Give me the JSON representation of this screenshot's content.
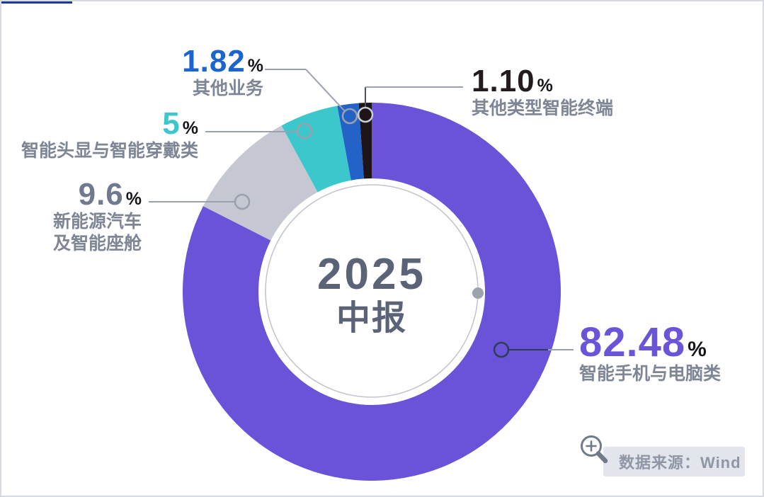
{
  "page": {
    "accent_bar_color": "#1e3a96",
    "border_color": "#d8dae3",
    "background": "#ffffff"
  },
  "chart_data": {
    "type": "pie",
    "subtype": "donut",
    "title": "",
    "center_label": {
      "line1": "2025",
      "line2": "中报"
    },
    "unit": "%",
    "start_angle_deg_from_top": 0,
    "direction": "clockwise",
    "slices": [
      {
        "name": "智能手机与电脑类",
        "value": 82.48,
        "display": "82.48",
        "color": "#6a53d8",
        "number_color": "#6a55d8"
      },
      {
        "name": "新能源汽车及智能座舱",
        "label_lines": [
          "新能源汽车",
          "及智能座舱"
        ],
        "value": 9.6,
        "display": "9.6",
        "color": "#c5c8d3",
        "number_color": "#6f7a8e"
      },
      {
        "name": "智能头显与智能穿戴类",
        "value": 5,
        "display": "5",
        "color": "#3cc7cd",
        "number_color": "#3cc7cd"
      },
      {
        "name": "其他业务",
        "value": 1.82,
        "display": "1.82",
        "color": "#2363c8",
        "number_color": "#1c64ce"
      },
      {
        "name": "其他类型智能终端",
        "value": 1.1,
        "display": "1.10",
        "color": "#1e1519",
        "number_color": "#241b1f"
      }
    ],
    "label_color": "#7e8696",
    "percent_sign_color": "#17141a",
    "center_text_color": "#5a6377",
    "source": "数据来源：Wind"
  }
}
